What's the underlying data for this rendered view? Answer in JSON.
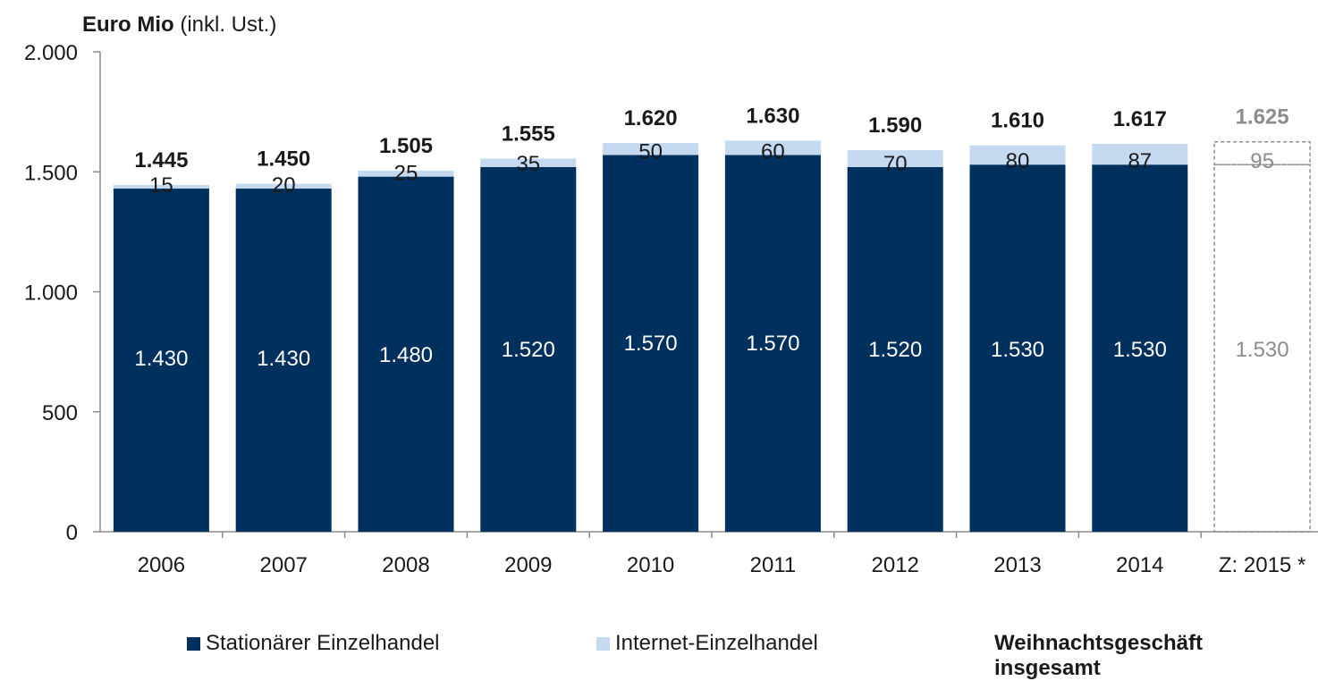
{
  "chart_data": {
    "type": "bar",
    "stacked": true,
    "unit_label_bold": "Euro Mio",
    "unit_label_rest": "(inkl. Ust.)",
    "categories": [
      "2006",
      "2007",
      "2008",
      "2009",
      "2010",
      "2011",
      "2012",
      "2013",
      "2014",
      "Z: 2015 *"
    ],
    "series": [
      {
        "name": "Stationärer Einzelhandel",
        "values": [
          1430,
          1430,
          1480,
          1520,
          1570,
          1570,
          1520,
          1530,
          1530,
          1530
        ],
        "labels": [
          "1.430",
          "1.430",
          "1.480",
          "1.520",
          "1.570",
          "1.570",
          "1.520",
          "1.530",
          "1.530",
          "1.530"
        ]
      },
      {
        "name": "Internet-Einzelhandel",
        "values": [
          15,
          20,
          25,
          35,
          50,
          60,
          70,
          80,
          87,
          95
        ],
        "labels": [
          "15",
          "20",
          "25",
          "35",
          "50",
          "60",
          "70",
          "80",
          "87",
          "95"
        ]
      }
    ],
    "totals": {
      "name": "Weihnachtsgeschäft insgesamt",
      "values": [
        1445,
        1450,
        1505,
        1555,
        1620,
        1630,
        1590,
        1610,
        1617,
        1625
      ],
      "labels": [
        "1.445",
        "1.450",
        "1.505",
        "1.555",
        "1.620",
        "1.630",
        "1.590",
        "1.610",
        "1.617",
        "1.625"
      ]
    },
    "forecast_index": 9,
    "ylim": [
      0,
      2000
    ],
    "yticks": [
      0,
      500,
      1000,
      1500,
      2000
    ],
    "ytick_labels": [
      "0",
      "500",
      "1.000",
      "1.500",
      "2.000"
    ],
    "grid": false,
    "legend_position": "bottom",
    "colors": {
      "stationary": "#00305e",
      "internet": "#c5d9f1",
      "forecast": "#8c8c8c",
      "text": "#1a1a1a",
      "axis": "#8c8c8c"
    }
  }
}
